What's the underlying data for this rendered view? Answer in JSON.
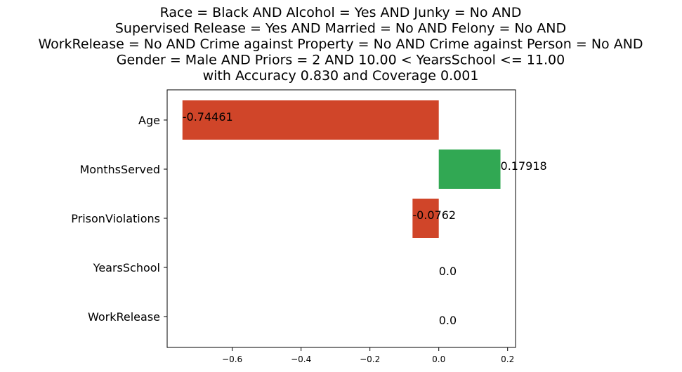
{
  "chart_data": {
    "type": "bar",
    "orientation": "horizontal",
    "title_lines": [
      "Race = Black AND Alcohol = Yes AND Junky = No AND",
      "Supervised Release = Yes AND Married = No AND Felony = No AND",
      "WorkRelease = No AND Crime against Property = No AND Crime against Person = No AND",
      "Gender = Male AND Priors = 2 AND 10.00 < YearsSchool <= 11.00",
      "with Accuracy 0.830 and Coverage 0.001"
    ],
    "categories": [
      "Age",
      "MonthsServed",
      "PrisonViolations",
      "YearsSchool",
      "WorkRelease"
    ],
    "values": [
      -0.74461,
      0.17918,
      -0.0762,
      0.0,
      0.0
    ],
    "value_labels": [
      "-0.74461",
      "0.17918",
      "-0.0762",
      "0.0",
      "0.0"
    ],
    "xticks": [
      -0.6,
      -0.4,
      -0.2,
      0.0,
      0.2
    ],
    "xtick_labels": [
      "−0.6",
      "−0.4",
      "−0.2",
      "0.0",
      "0.2"
    ],
    "xlim": [
      -0.789,
      0.223
    ],
    "grid": false,
    "colors": {
      "negative": "#d04529",
      "positive": "#31a853"
    }
  }
}
